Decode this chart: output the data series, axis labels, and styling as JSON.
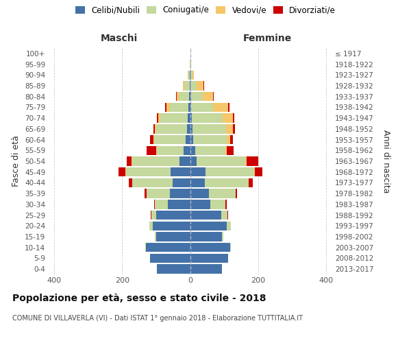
{
  "age_groups": [
    "0-4",
    "5-9",
    "10-14",
    "15-19",
    "20-24",
    "25-29",
    "30-34",
    "35-39",
    "40-44",
    "45-49",
    "50-54",
    "55-59",
    "60-64",
    "65-69",
    "70-74",
    "75-79",
    "80-84",
    "85-89",
    "90-94",
    "95-99",
    "100+"
  ],
  "birth_years": [
    "2013-2017",
    "2008-2012",
    "2003-2007",
    "1998-2002",
    "1993-1997",
    "1988-1992",
    "1983-1987",
    "1978-1982",
    "1973-1977",
    "1968-1972",
    "1963-1967",
    "1958-1962",
    "1953-1957",
    "1948-1952",
    "1943-1947",
    "1938-1942",
    "1933-1937",
    "1928-1932",
    "1923-1927",
    "1918-1922",
    "≤ 1917"
  ],
  "colors": {
    "celibi_nubili": "#4472a8",
    "coniugati_e": "#c5d89e",
    "vedovi_e": "#f5c76a",
    "divorziati_e": "#cc0000"
  },
  "males_celibi": [
    98,
    118,
    130,
    100,
    110,
    100,
    65,
    60,
    52,
    58,
    32,
    20,
    14,
    10,
    8,
    5,
    3,
    2,
    1,
    0,
    0
  ],
  "males_coniugati": [
    0,
    0,
    2,
    3,
    9,
    14,
    38,
    68,
    118,
    130,
    138,
    78,
    92,
    90,
    80,
    55,
    30,
    15,
    4,
    1,
    0
  ],
  "males_vedovi": [
    0,
    0,
    0,
    0,
    0,
    0,
    0,
    0,
    0,
    2,
    2,
    2,
    2,
    3,
    5,
    10,
    6,
    4,
    2,
    0,
    0
  ],
  "males_divorziati": [
    0,
    0,
    0,
    0,
    1,
    2,
    3,
    5,
    11,
    20,
    15,
    28,
    9,
    5,
    4,
    3,
    2,
    0,
    0,
    0,
    0
  ],
  "females_nubili": [
    93,
    112,
    118,
    93,
    108,
    92,
    60,
    55,
    44,
    45,
    20,
    15,
    10,
    8,
    5,
    4,
    3,
    2,
    1,
    0,
    0
  ],
  "females_coniugate": [
    0,
    0,
    2,
    4,
    11,
    17,
    44,
    78,
    128,
    143,
    143,
    88,
    98,
    98,
    90,
    64,
    34,
    18,
    6,
    2,
    0
  ],
  "females_vedove": [
    0,
    0,
    0,
    0,
    0,
    0,
    0,
    0,
    1,
    2,
    3,
    5,
    10,
    20,
    30,
    44,
    30,
    20,
    5,
    1,
    0
  ],
  "females_divorziate": [
    0,
    0,
    0,
    0,
    1,
    2,
    3,
    5,
    12,
    22,
    34,
    20,
    8,
    5,
    5,
    3,
    2,
    1,
    0,
    0,
    0
  ],
  "xlim": 420,
  "title": "Popolazione per età, sesso e stato civile - 2018",
  "subtitle": "COMUNE DI VILLAVERLA (VI) - Dati ISTAT 1° gennaio 2018 - Elaborazione TUTTITALIA.IT",
  "maschi_label": "Maschi",
  "femmine_label": "Femmine",
  "ylabel_left": "Fasce di età",
  "ylabel_right": "Anni di nascita",
  "legend_labels": [
    "Celibi/Nubili",
    "Coniugati/e",
    "Vedovi/e",
    "Divorziati/e"
  ],
  "background_color": "#ffffff",
  "grid_color": "#cccccc"
}
